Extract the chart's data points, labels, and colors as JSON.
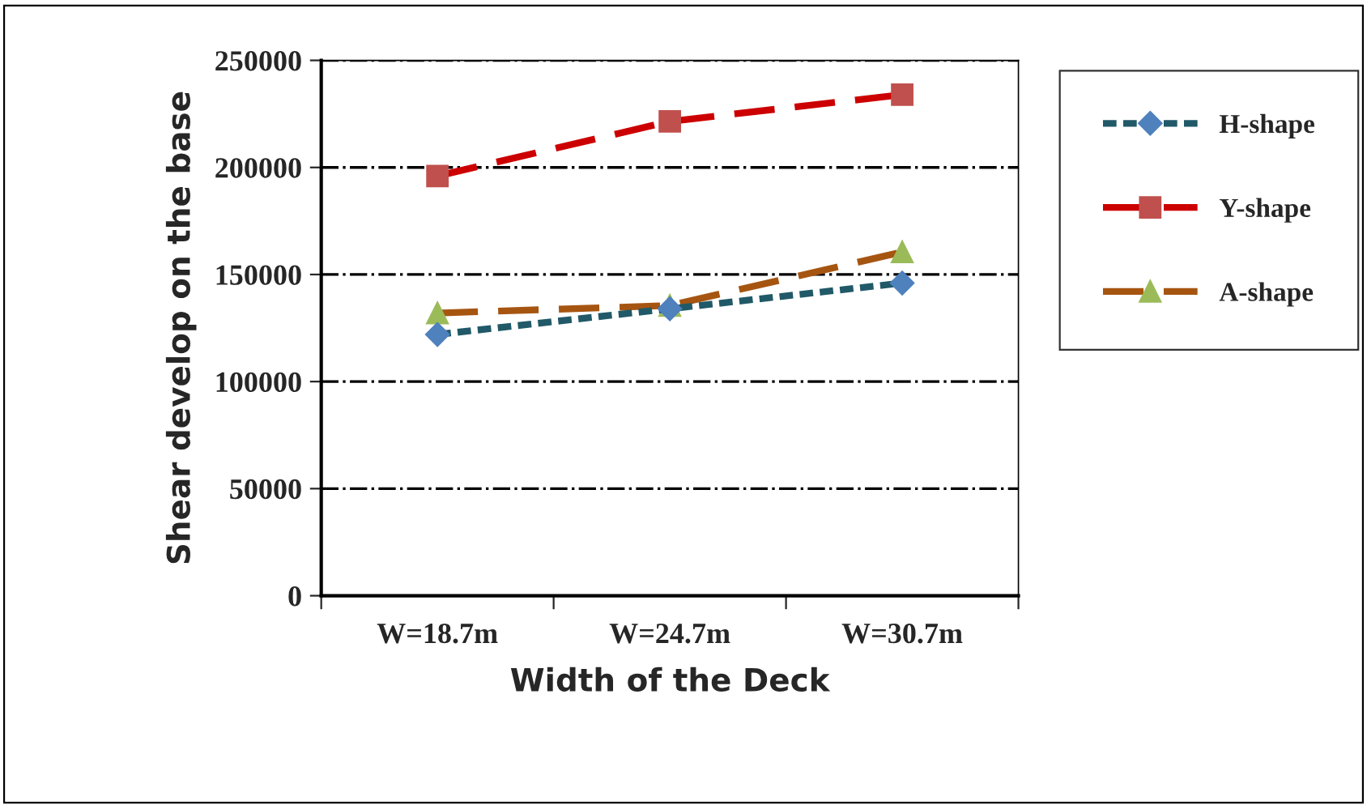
{
  "chart_data": {
    "type": "line",
    "xlabel": "Width of the Deck",
    "ylabel": "Shear develop on the base",
    "categories": [
      "W=18.7m",
      "W=24.7m",
      "W=30.7m"
    ],
    "series": [
      {
        "name": "H-shape",
        "color": "#215968",
        "marker": "diamond",
        "line_style": "dotted",
        "values": [
          122000,
          134000,
          146000
        ]
      },
      {
        "name": "Y-shape",
        "color": "#cc0000",
        "marker": "square",
        "line_style": "dashed",
        "values": [
          196000,
          221500,
          234000
        ]
      },
      {
        "name": "A-shape",
        "color": "#a65511",
        "marker": "triangle",
        "line_style": "dashed",
        "values": [
          132000,
          135500,
          160500
        ]
      }
    ],
    "ylim": [
      0,
      250000
    ],
    "yticks": [
      0,
      50000,
      100000,
      150000,
      200000,
      250000
    ],
    "grid": "y",
    "legend": "right"
  }
}
